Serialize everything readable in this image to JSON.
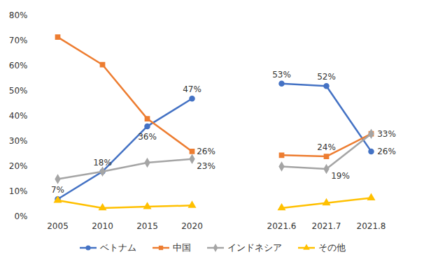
{
  "chart_data": {
    "type": "line",
    "categories": [
      "2005",
      "2010",
      "2015",
      "2020",
      null,
      "2021.6",
      "2021.7",
      "2021.8"
    ],
    "series": [
      {
        "name": "ベトナム",
        "color": "#4472C4",
        "marker": "circle",
        "values": [
          7,
          18,
          36,
          47,
          null,
          53,
          52,
          26
        ],
        "value_labels": [
          "7%",
          "18%",
          "36%",
          "47%",
          null,
          "53%",
          "52%",
          "26%"
        ]
      },
      {
        "name": "中国",
        "color": "#ED7D31",
        "marker": "square",
        "values": [
          71.5,
          60.5,
          39,
          26,
          null,
          24.5,
          24,
          33
        ],
        "value_labels": [
          null,
          null,
          null,
          "26%",
          null,
          null,
          "24%",
          "33%"
        ]
      },
      {
        "name": "インドネシア",
        "color": "#A5A5A5",
        "marker": "diamond",
        "values": [
          15,
          18,
          21.5,
          23,
          null,
          20,
          19,
          33
        ],
        "value_labels": [
          null,
          null,
          null,
          "23%",
          null,
          null,
          "19%",
          null
        ]
      },
      {
        "name": "その他",
        "color": "#FFC000",
        "marker": "triangle",
        "values": [
          6.5,
          3.5,
          4,
          4.5,
          null,
          3.5,
          5.5,
          7.5
        ]
      }
    ],
    "ylim": [
      0,
      80
    ],
    "yticks": [
      {
        "value": 0,
        "label": "0%"
      },
      {
        "value": 10,
        "label": "10%"
      },
      {
        "value": 20,
        "label": "20%"
      },
      {
        "value": 30,
        "label": "30%"
      },
      {
        "value": 40,
        "label": "40%"
      },
      {
        "value": 50,
        "label": "50%"
      },
      {
        "value": 60,
        "label": "60%"
      },
      {
        "value": 70,
        "label": "70%"
      },
      {
        "value": 80,
        "label": "80%"
      }
    ],
    "grid": false,
    "legend": "bottom",
    "data_labels": true
  }
}
